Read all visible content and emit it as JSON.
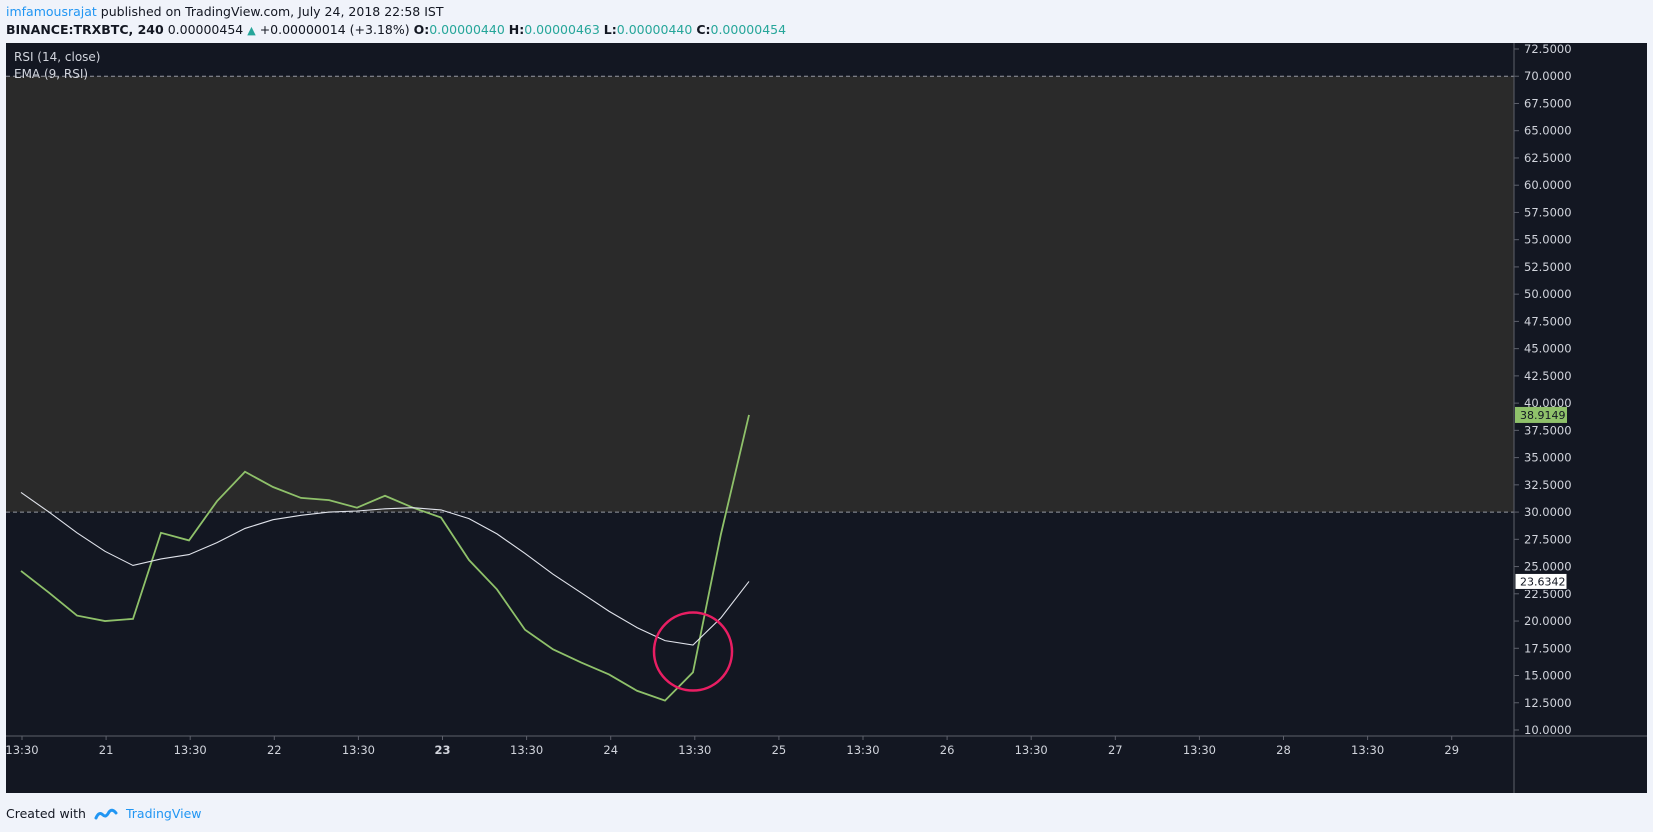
{
  "header": {
    "author": "imfamousrajat",
    "published_text": "published on TradingView.com, July 24, 2018 22:58 IST",
    "symbol": "BINANCE:TRXBTC, 240",
    "last": "0.00000454",
    "change": "+0.00000014 (+3.18%)",
    "o_label": "O:",
    "o_value": "0.00000440",
    "h_label": "H:",
    "h_value": "0.00000463",
    "l_label": "L:",
    "l_value": "0.00000440",
    "c_label": "C:",
    "c_value": "0.00000454"
  },
  "legend": {
    "rsi": "RSI (14, close)",
    "ema": "EMA (9, RSI)"
  },
  "footer": {
    "created_with": "Created with",
    "brand": "TradingView"
  },
  "colors": {
    "background": "#131722",
    "band_fill": "#2a2a2a",
    "rsi_line": "#8fc16a",
    "ema_line": "#e0e3eb",
    "marker_circle": "#e91e63",
    "rsi_badge": "#8fc16a",
    "ema_badge": "#ffffff"
  },
  "chart_data": {
    "type": "line",
    "ylim": [
      10,
      73
    ],
    "y_ticks": [
      "72.5000",
      "70.0000",
      "67.5000",
      "65.0000",
      "62.5000",
      "60.0000",
      "57.5000",
      "55.0000",
      "52.5000",
      "50.0000",
      "47.5000",
      "45.0000",
      "42.5000",
      "40.0000",
      "37.5000",
      "35.0000",
      "32.5000",
      "30.0000",
      "27.5000",
      "25.0000",
      "22.5000",
      "20.0000",
      "17.5000",
      "15.0000",
      "12.5000",
      "10.0000"
    ],
    "x_ticks": [
      "13:30",
      "21",
      "13:30",
      "22",
      "13:30",
      "23",
      "13:30",
      "24",
      "13:30",
      "25",
      "13:30",
      "26",
      "13:30",
      "27",
      "13:30",
      "28",
      "13:30",
      "29"
    ],
    "bold_x_ticks": [
      "23"
    ],
    "x_count": 54,
    "upper_band": 70,
    "lower_band": 30,
    "series": [
      {
        "name": "RSI (14, close)",
        "x": [
          0,
          1,
          2,
          3,
          4,
          5,
          6,
          7,
          8,
          9,
          10,
          11,
          12,
          13,
          14,
          15,
          16,
          17,
          18,
          19,
          20,
          21,
          22,
          23,
          24,
          25,
          26
        ],
        "values": [
          24.6,
          22.6,
          20.5,
          20.0,
          20.2,
          28.1,
          27.4,
          31.0,
          33.7,
          32.3,
          31.3,
          31.1,
          30.4,
          31.5,
          30.4,
          29.5,
          25.6,
          22.9,
          19.2,
          17.4,
          16.2,
          15.1,
          13.6,
          12.7,
          15.3,
          28.0,
          38.9149
        ]
      },
      {
        "name": "EMA (9, RSI)",
        "x": [
          0,
          1,
          2,
          3,
          4,
          5,
          6,
          7,
          8,
          9,
          10,
          11,
          12,
          13,
          14,
          15,
          16,
          17,
          18,
          19,
          20,
          21,
          22,
          23,
          24,
          25,
          26
        ],
        "values": [
          31.8,
          30.0,
          28.1,
          26.4,
          25.1,
          25.7,
          26.1,
          27.2,
          28.5,
          29.3,
          29.7,
          30.0,
          30.1,
          30.3,
          30.4,
          30.2,
          29.4,
          28.0,
          26.2,
          24.3,
          22.6,
          20.9,
          19.4,
          18.2,
          17.8,
          20.3,
          23.6342
        ]
      }
    ],
    "last_value_badges": [
      {
        "series": "RSI (14, close)",
        "text": "38.9149"
      },
      {
        "series": "EMA (9, RSI)",
        "text": "23.6342"
      }
    ],
    "annotation": {
      "type": "circle",
      "x": 24.0,
      "y": 17.2
    }
  }
}
